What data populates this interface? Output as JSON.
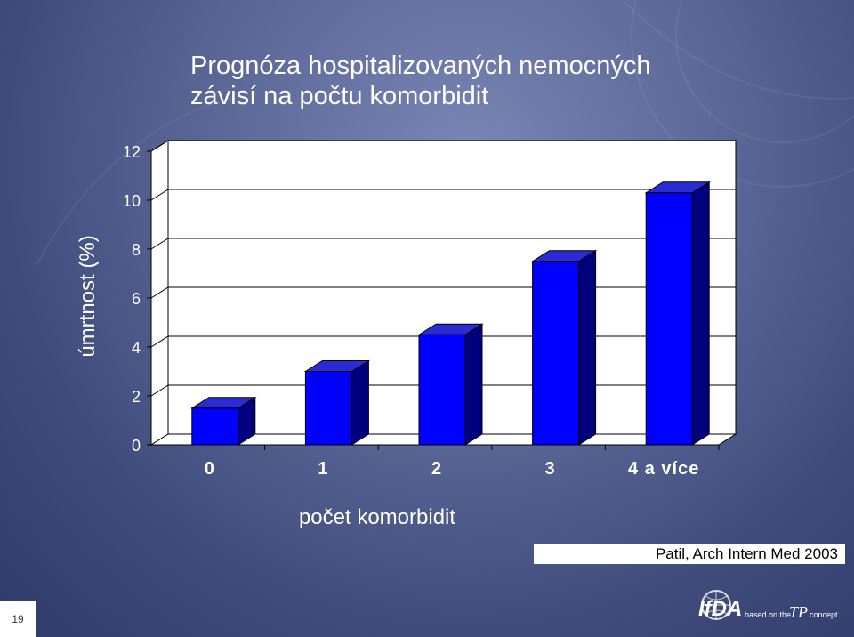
{
  "slide": {
    "title_line1": "Prognóza hospitalizovaných nemocných",
    "title_line2": "závisí na počtu komorbidit",
    "source": "Patil, Arch Intern Med 2003",
    "page_number": "19",
    "logo_text": "IfDA",
    "logo_tagline": "based on the",
    "logo_concept": "concept"
  },
  "colors": {
    "bar_front": "#0000ff",
    "bar_top": "#2b2bd6",
    "bar_side": "#00007e",
    "wall": "#ffffff",
    "text": "#ffffff"
  },
  "chart_data": {
    "type": "bar",
    "categories": [
      "0",
      "1",
      "2",
      "3",
      "4 a více"
    ],
    "values": [
      1.5,
      3.0,
      4.5,
      7.5,
      10.3
    ],
    "ylabel": "úmrtnost (%)",
    "xlabel": "počet komorbidit",
    "ylim": [
      0,
      12
    ],
    "yticks": [
      0,
      2,
      4,
      6,
      8,
      10,
      12
    ],
    "grid": true
  }
}
